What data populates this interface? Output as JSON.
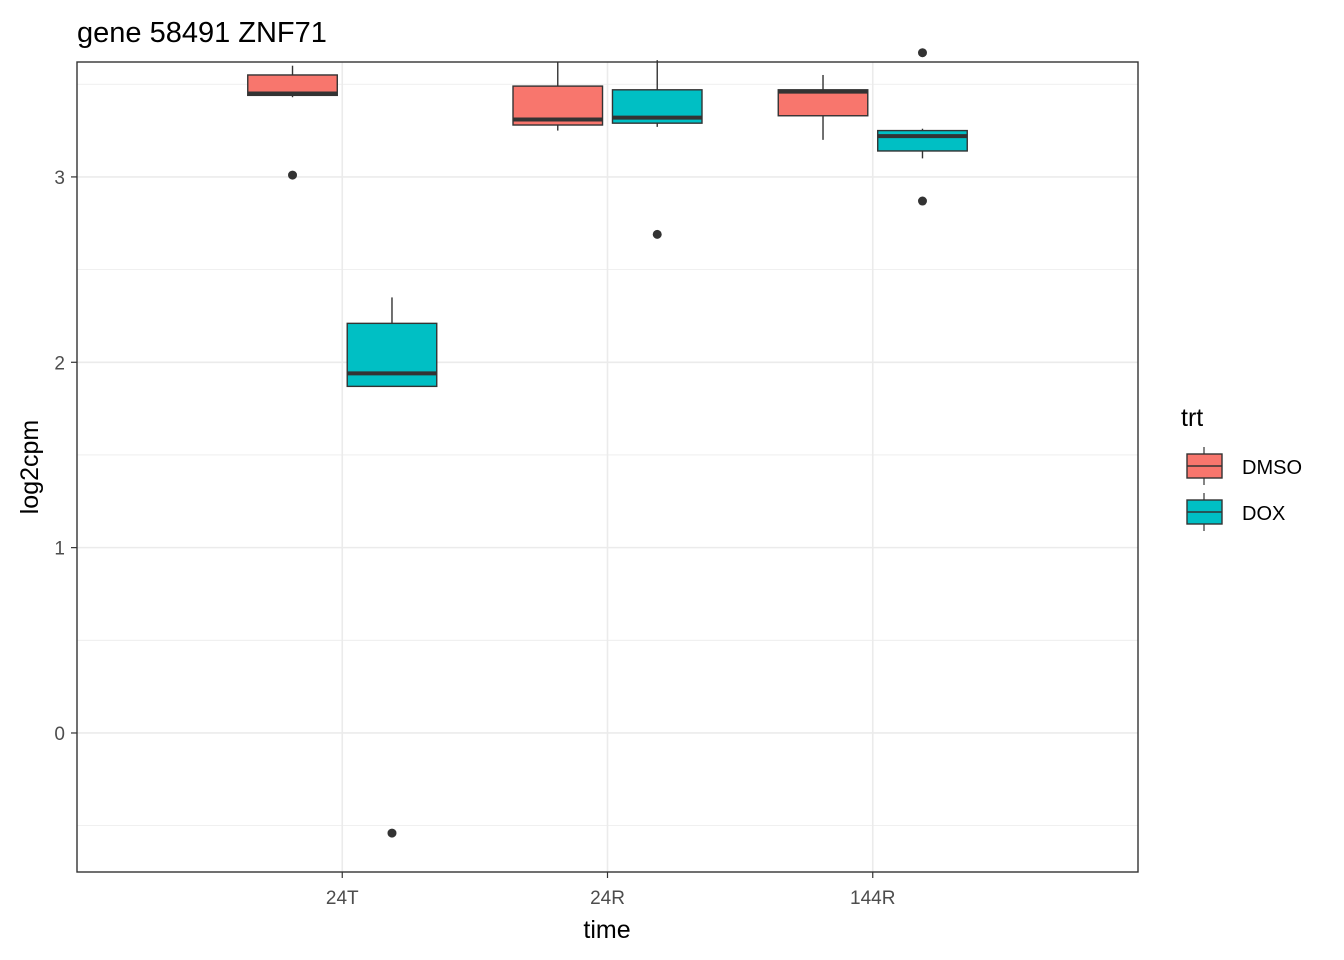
{
  "chart_data": {
    "type": "boxplot",
    "title": "gene 58491 ZNF71",
    "xlabel": "time",
    "ylabel": "log2cpm",
    "categories": [
      "24T",
      "24R",
      "144R"
    ],
    "ylim": [
      -0.75,
      3.62
    ],
    "yticks": [
      0,
      1,
      2,
      3
    ],
    "grid": true,
    "legend": {
      "title": "trt",
      "position": "right",
      "entries": [
        {
          "label": "DMSO",
          "color": "#F8766D"
        },
        {
          "label": "DOX",
          "color": "#00BFC4"
        }
      ]
    },
    "series": [
      {
        "name": "DMSO",
        "color": "#F8766D",
        "boxes": [
          {
            "category": "24T",
            "whisker_low": 3.43,
            "q1": 3.44,
            "median": 3.45,
            "q3": 3.55,
            "whisker_high": 3.6,
            "outliers": [
              3.01
            ]
          },
          {
            "category": "24R",
            "whisker_low": 3.25,
            "q1": 3.28,
            "median": 3.31,
            "q3": 3.49,
            "whisker_high": 3.62,
            "outliers": []
          },
          {
            "category": "144R",
            "whisker_low": 3.2,
            "q1": 3.33,
            "median": 3.46,
            "q3": 3.47,
            "whisker_high": 3.55,
            "outliers": []
          }
        ]
      },
      {
        "name": "DOX",
        "color": "#00BFC4",
        "boxes": [
          {
            "category": "24T",
            "whisker_low": 1.87,
            "q1": 1.87,
            "median": 1.94,
            "q3": 2.21,
            "whisker_high": 2.35,
            "outliers": [
              -0.54
            ]
          },
          {
            "category": "24R",
            "whisker_low": 3.27,
            "q1": 3.29,
            "median": 3.32,
            "q3": 3.47,
            "whisker_high": 3.63,
            "outliers": [
              2.69
            ]
          },
          {
            "category": "144R",
            "whisker_low": 3.1,
            "q1": 3.14,
            "median": 3.22,
            "q3": 3.25,
            "whisker_high": 3.26,
            "outliers": [
              3.67,
              2.87
            ]
          }
        ]
      }
    ]
  }
}
